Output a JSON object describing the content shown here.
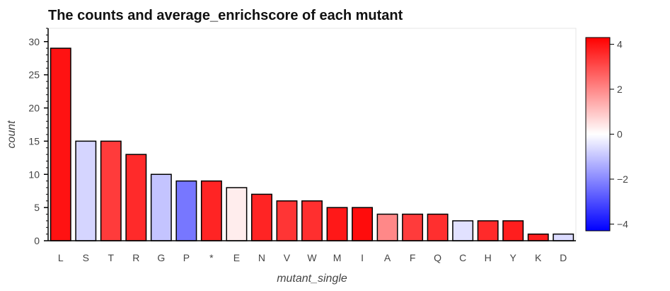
{
  "chart_data": {
    "type": "bar",
    "title": "The counts and average_enrichscore of each mutant",
    "xlabel": "mutant_single",
    "ylabel": "count",
    "categories": [
      "L",
      "S",
      "T",
      "R",
      "G",
      "P",
      "*",
      "E",
      "N",
      "V",
      "W",
      "M",
      "I",
      "A",
      "F",
      "Q",
      "C",
      "H",
      "Y",
      "K",
      "D"
    ],
    "values": [
      29,
      15,
      15,
      13,
      10,
      9,
      9,
      8,
      7,
      6,
      6,
      5,
      5,
      4,
      4,
      4,
      3,
      3,
      3,
      1,
      1
    ],
    "color_values": [
      4.0,
      -0.7,
      3.3,
      3.6,
      -1.0,
      -2.3,
      3.7,
      0.3,
      3.7,
      3.4,
      3.5,
      3.9,
      4.1,
      2.0,
      3.3,
      3.5,
      -0.5,
      3.6,
      3.8,
      3.8,
      -0.6
    ],
    "ylim": [
      0,
      32
    ],
    "yticks": [
      0,
      5,
      10,
      15,
      20,
      25,
      30
    ],
    "colorbar": {
      "range": [
        -4.3,
        4.3
      ],
      "ticks": [
        "4",
        "2",
        "0",
        "−2",
        "−4"
      ],
      "tick_values": [
        4,
        2,
        0,
        -2,
        -4
      ],
      "low_color": "#0000ff",
      "mid_color": "#ffffff",
      "high_color": "#ff0000"
    },
    "grid": false,
    "legend": "colorbar-right"
  }
}
